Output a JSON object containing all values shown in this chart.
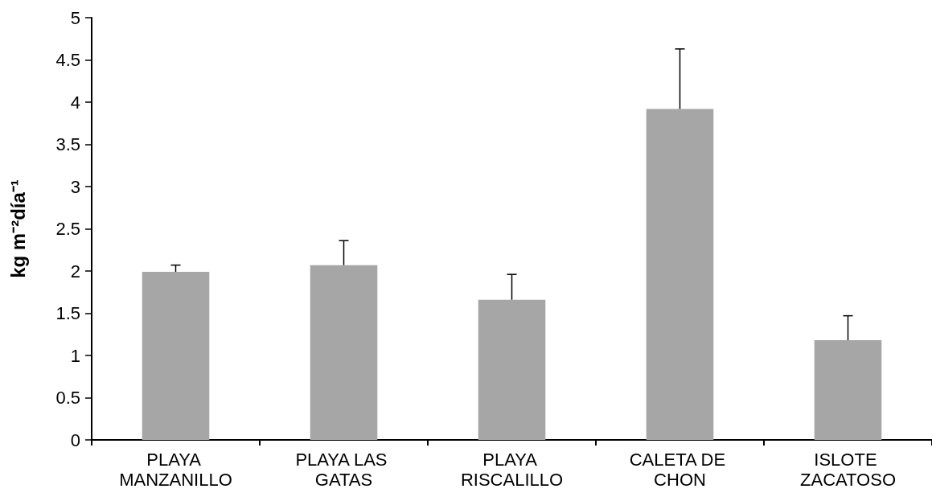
{
  "chart_data": {
    "type": "bar",
    "ylabel": "kg m⁻²día⁻¹",
    "categories": [
      "PLAYA MANZANILLO",
      "PLAYA LAS GATAS",
      "PLAYA RISCALILLO",
      "CALETA DE CHON",
      "ISLOTE ZACATOSO"
    ],
    "values": [
      1.99,
      2.07,
      1.66,
      3.92,
      1.18
    ],
    "errors": [
      [
        1.99,
        2.07
      ],
      [
        2.07,
        2.36
      ],
      [
        1.66,
        1.96
      ],
      [
        3.92,
        4.63
      ],
      [
        1.18,
        1.47
      ]
    ],
    "color": "#a6a6a6",
    "ylim": [
      0,
      5
    ],
    "yticks": [
      0,
      0.5,
      1,
      1.5,
      2,
      2.5,
      3,
      3.5,
      4,
      4.5,
      5
    ],
    "grid": false
  }
}
